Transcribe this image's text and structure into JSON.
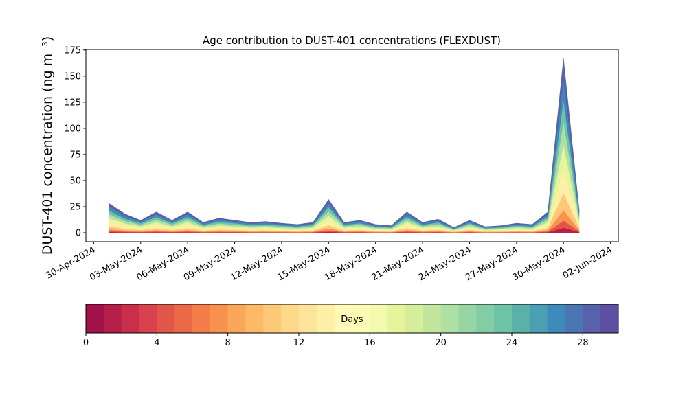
{
  "chart_data": {
    "type": "stacked_area",
    "title": "Age contribution to DUST-401 concentrations (FLEXDUST)",
    "y_label": "DUST-401 concentration (ng m⁻³)",
    "x": [
      "2024-05-01",
      "2024-05-02",
      "2024-05-03",
      "2024-05-04",
      "2024-05-05",
      "2024-05-06",
      "2024-05-07",
      "2024-05-08",
      "2024-05-09",
      "2024-05-10",
      "2024-05-11",
      "2024-05-12",
      "2024-05-13",
      "2024-05-14",
      "2024-05-15",
      "2024-05-16",
      "2024-05-17",
      "2024-05-18",
      "2024-05-19",
      "2024-05-20",
      "2024-05-21",
      "2024-05-22",
      "2024-05-23",
      "2024-05-24",
      "2024-05-25",
      "2024-05-26",
      "2024-05-27",
      "2024-05-28",
      "2024-05-29",
      "2024-05-30",
      "2024-05-31"
    ],
    "xlim": [
      "2024-04-29T12:00",
      "2024-06-02T12:00"
    ],
    "xticks": [
      {
        "value": "2024-04-30",
        "label": "30-Apr-2024"
      },
      {
        "value": "2024-05-03",
        "label": "03-May-2024"
      },
      {
        "value": "2024-05-06",
        "label": "06-May-2024"
      },
      {
        "value": "2024-05-09",
        "label": "09-May-2024"
      },
      {
        "value": "2024-05-12",
        "label": "12-May-2024"
      },
      {
        "value": "2024-05-15",
        "label": "15-May-2024"
      },
      {
        "value": "2024-05-18",
        "label": "18-May-2024"
      },
      {
        "value": "2024-05-21",
        "label": "21-May-2024"
      },
      {
        "value": "2024-05-24",
        "label": "24-May-2024"
      },
      {
        "value": "2024-05-27",
        "label": "27-May-2024"
      },
      {
        "value": "2024-05-30",
        "label": "30-May-2024"
      },
      {
        "value": "2024-06-02",
        "label": "02-Jun-2024"
      }
    ],
    "ylim": [
      -8.5,
      175.5
    ],
    "yticks": [
      0,
      25,
      50,
      75,
      100,
      125,
      150,
      175
    ],
    "series": [
      {
        "color": "#b61f49",
        "values": [
          0.8,
          0.5,
          0.4,
          0.6,
          0.4,
          0.6,
          0.3,
          0.4,
          0.4,
          0.3,
          0.3,
          0.3,
          0.2,
          0.3,
          1.0,
          0.3,
          0.4,
          0.2,
          0.2,
          0.6,
          0.3,
          0.4,
          0.2,
          0.4,
          0.2,
          0.2,
          0.3,
          0.2,
          0.6,
          5.0,
          0.7
        ]
      },
      {
        "color": "#e2564a",
        "values": [
          1.1,
          0.7,
          0.5,
          0.8,
          0.5,
          0.8,
          0.4,
          0.6,
          0.5,
          0.4,
          0.4,
          0.4,
          0.3,
          0.4,
          1.3,
          0.4,
          0.5,
          0.3,
          0.3,
          0.8,
          0.4,
          0.5,
          0.2,
          0.5,
          0.2,
          0.3,
          0.4,
          0.3,
          0.8,
          6.7,
          0.9
        ]
      },
      {
        "color": "#f8924f",
        "values": [
          1.7,
          1.1,
          0.7,
          1.2,
          0.7,
          1.2,
          0.6,
          0.8,
          0.7,
          0.6,
          0.7,
          0.5,
          0.5,
          0.6,
          1.9,
          0.6,
          0.7,
          0.5,
          0.4,
          1.2,
          0.6,
          0.8,
          0.3,
          0.7,
          0.4,
          0.4,
          0.5,
          0.5,
          1.2,
          10.0,
          1.3
        ]
      },
      {
        "color": "#fdc877",
        "values": [
          2.8,
          1.8,
          1.2,
          2,
          1.2,
          2,
          1,
          1.4,
          1.2,
          1,
          1.1,
          0.9,
          0.8,
          1,
          3.2,
          1,
          1.2,
          0.8,
          0.7,
          2,
          1,
          1.3,
          0.5,
          1.2,
          0.6,
          0.7,
          0.9,
          0.8,
          2,
          16.7,
          2.2
        ]
      },
      {
        "color": "#feefa6",
        "values": [
          3.9,
          2.5,
          1.7,
          2.8,
          1.7,
          2.8,
          1.4,
          2,
          1.7,
          1.4,
          1.5,
          1.3,
          1.1,
          1.4,
          4.5,
          1.4,
          1.7,
          1.1,
          1,
          2.8,
          1.4,
          1.8,
          0.7,
          1.7,
          0.8,
          1,
          1.3,
          1.1,
          2.8,
          23.4,
          3.1
        ]
      },
      {
        "color": "#e6f49c",
        "values": [
          3.9,
          2.5,
          1.7,
          2.8,
          1.7,
          2.8,
          1.4,
          2,
          1.7,
          1.4,
          1.5,
          1.3,
          1.1,
          1.4,
          4.5,
          1.4,
          1.7,
          1.1,
          1,
          2.8,
          1.4,
          1.8,
          0.7,
          1.7,
          0.8,
          1,
          1.3,
          1.1,
          2.8,
          23.4,
          3.1
        ]
      },
      {
        "color": "#aedfa3",
        "values": [
          3.6,
          2.3,
          1.6,
          2.6,
          1.6,
          2.6,
          1.3,
          1.8,
          1.6,
          1.3,
          1.4,
          1.2,
          1,
          1.3,
          4.2,
          1.3,
          1.6,
          1,
          0.9,
          2.6,
          1.3,
          1.7,
          0.7,
          1.6,
          0.8,
          0.9,
          1.2,
          1,
          2.6,
          21.7,
          2.9
        ]
      },
      {
        "color": "#6cc3a5",
        "values": [
          3.4,
          2.2,
          1.4,
          2.4,
          1.4,
          2.4,
          1.2,
          1.7,
          1.4,
          1.2,
          1.3,
          1.1,
          1,
          1.2,
          3.8,
          1.2,
          1.4,
          1,
          0.8,
          2.4,
          1.2,
          1.6,
          0.6,
          1.4,
          0.7,
          0.8,
          1.1,
          1,
          2.4,
          20,
          2.6
        ]
      },
      {
        "color": "#3e8bbb",
        "values": [
          3.4,
          2.2,
          1.4,
          2.4,
          1.4,
          2.4,
          1.2,
          1.7,
          1.4,
          1.2,
          1.3,
          1.1,
          1,
          1.2,
          3.8,
          1.2,
          1.4,
          1,
          0.8,
          2.4,
          1.2,
          1.6,
          0.6,
          1.4,
          0.7,
          0.8,
          1.1,
          1,
          2.4,
          20,
          2.6
        ]
      },
      {
        "color": "#5862aa",
        "values": [
          3.4,
          2.2,
          1.4,
          2.4,
          1.4,
          2.4,
          1.2,
          1.7,
          1.4,
          1.2,
          1.3,
          1.1,
          1,
          1.2,
          3.8,
          1.2,
          1.4,
          1,
          0.8,
          2.4,
          1.2,
          1.6,
          0.6,
          1.4,
          0.7,
          0.8,
          1.1,
          1,
          2.4,
          20,
          2.6
        ]
      }
    ],
    "colorbar": {
      "label": "Days",
      "lim": [
        0,
        30
      ],
      "ticks": [
        0,
        4,
        8,
        12,
        16,
        20,
        24,
        28
      ],
      "colors": [
        "#a3104a",
        "#b61f49",
        "#c92f4b",
        "#d9424c",
        "#e2564a",
        "#ec6948",
        "#f57d4a",
        "#f8924f",
        "#fba75b",
        "#fdb966",
        "#fdc877",
        "#fed788",
        "#fee498",
        "#feefa6",
        "#fffab8",
        "#fbfbb4",
        "#f3faad",
        "#e6f49c",
        "#d6ee9b",
        "#c3e69f",
        "#aedfa3",
        "#98d5a4",
        "#83cca5",
        "#6cc3a5",
        "#5bb1a9",
        "#4b9fb2",
        "#3e8bbb",
        "#4a76b3",
        "#5862aa",
        "#5e4fa2"
      ]
    }
  }
}
